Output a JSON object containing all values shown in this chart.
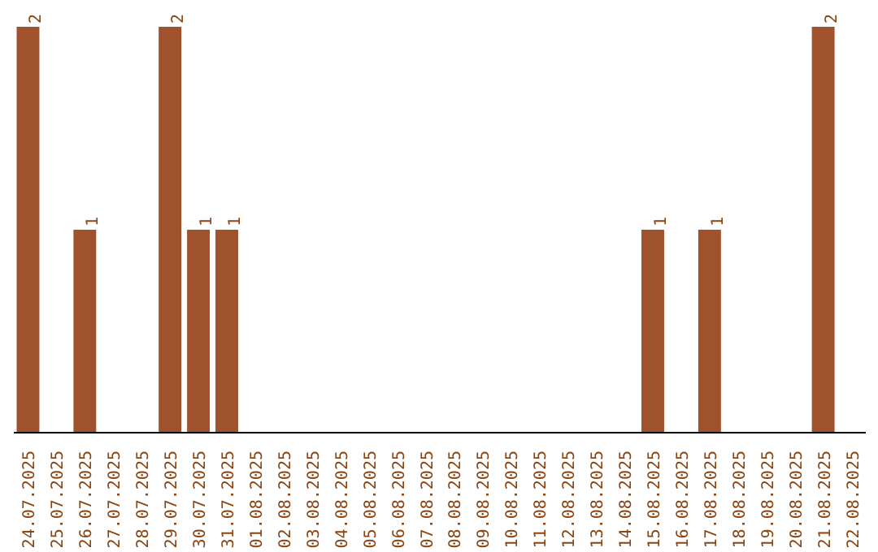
{
  "chart_data": {
    "type": "bar",
    "categories": [
      "24.07.2025",
      "25.07.2025",
      "26.07.2025",
      "27.07.2025",
      "28.07.2025",
      "29.07.2025",
      "30.07.2025",
      "31.07.2025",
      "01.08.2025",
      "02.08.2025",
      "03.08.2025",
      "04.08.2025",
      "05.08.2025",
      "06.08.2025",
      "07.08.2025",
      "08.08.2025",
      "09.08.2025",
      "10.08.2025",
      "11.08.2025",
      "12.08.2025",
      "13.08.2025",
      "14.08.2025",
      "15.08.2025",
      "16.08.2025",
      "17.08.2025",
      "18.08.2025",
      "19.08.2025",
      "20.08.2025",
      "21.08.2025",
      "22.08.2025"
    ],
    "values": [
      2,
      0,
      1,
      0,
      0,
      2,
      1,
      1,
      0,
      0,
      0,
      0,
      0,
      0,
      0,
      0,
      0,
      0,
      0,
      0,
      0,
      0,
      1,
      0,
      1,
      0,
      0,
      0,
      2,
      0
    ],
    "value_labels": [
      "2",
      null,
      "1",
      null,
      null,
      "2",
      "1",
      "1",
      null,
      null,
      null,
      null,
      null,
      null,
      null,
      null,
      null,
      null,
      null,
      null,
      null,
      null,
      "1",
      null,
      "1",
      null,
      null,
      null,
      "2",
      null
    ],
    "color": "#a0522d",
    "grid": false
  }
}
